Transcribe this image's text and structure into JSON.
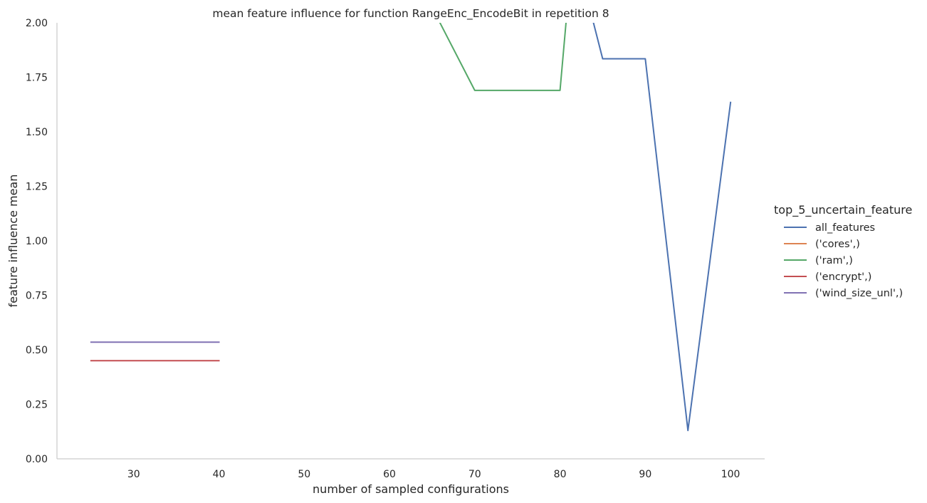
{
  "chart_data": {
    "type": "line",
    "title": "mean feature influence for function RangeEnc_EncodeBit in repetition 8",
    "xlabel": "number of sampled configurations",
    "ylabel": "feature influence mean",
    "xlim": [
      21,
      104
    ],
    "ylim": [
      0,
      2.0
    ],
    "xticks": [
      30,
      40,
      50,
      60,
      70,
      80,
      90,
      100
    ],
    "yticks": [
      0.0,
      0.25,
      0.5,
      0.75,
      1.0,
      1.25,
      1.5,
      1.75,
      2.0
    ],
    "ytick_labels": [
      "0.00",
      "0.25",
      "0.50",
      "0.75",
      "1.00",
      "1.25",
      "1.50",
      "1.75",
      "2.00"
    ],
    "grid": false,
    "legend": {
      "title": "top_5_uncertain_feature",
      "placement": "right"
    },
    "series": [
      {
        "name": "all_features",
        "color": "#4c72b0",
        "x": [
          80,
          85,
          90,
          95,
          100
        ],
        "y": [
          2.6,
          1.835,
          1.835,
          0.13,
          1.635
        ]
      },
      {
        "name": "('cores',)",
        "color": "#dd8452",
        "x": [],
        "y": []
      },
      {
        "name": "('ram',)",
        "color": "#55a868",
        "x": [
          60,
          70,
          75,
          80,
          85
        ],
        "y": [
          2.45,
          1.69,
          1.69,
          1.69,
          3.9
        ]
      },
      {
        "name": "('encrypt',)",
        "color": "#c44e52",
        "x": [
          25,
          30,
          35,
          40
        ],
        "y": [
          0.45,
          0.45,
          0.45,
          0.45
        ]
      },
      {
        "name": "('wind_size_unl',)",
        "color": "#8172b3",
        "x": [
          25,
          30,
          35,
          40
        ],
        "y": [
          0.535,
          0.535,
          0.535,
          0.535
        ]
      }
    ]
  }
}
